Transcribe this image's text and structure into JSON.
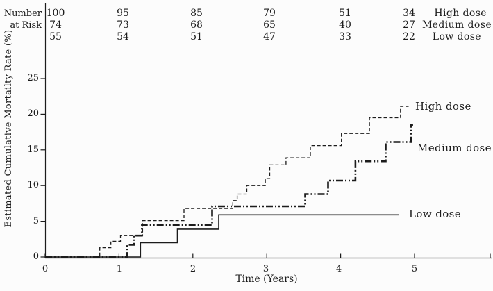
{
  "figure": {
    "ink_color": "#1c1c1c",
    "background_color": "#fcfcfc"
  },
  "risk_table": {
    "header_line1": "Number",
    "header_line2": "at Risk",
    "rows": [
      {
        "series": "High dose",
        "counts": [
          100,
          95,
          85,
          79,
          51,
          34
        ]
      },
      {
        "series": "Medium dose",
        "counts": [
          74,
          73,
          68,
          65,
          40,
          27
        ]
      },
      {
        "series": "Low dose",
        "counts": [
          55,
          54,
          51,
          47,
          33,
          22
        ]
      }
    ]
  },
  "chart_data": {
    "type": "line",
    "subtype": "step-post",
    "title": "",
    "xlabel": "Time (Years)",
    "ylabel": "Estimated Cumulative Mortailty Rate (%)",
    "xlim": [
      0,
      6.05
    ],
    "ylim": [
      0,
      27
    ],
    "x_ticks": [
      0,
      1,
      2,
      3,
      4,
      5
    ],
    "y_ticks": [
      0,
      5,
      10,
      15,
      20,
      25
    ],
    "grid": false,
    "legend_position": "inline-right-of-curves",
    "series": [
      {
        "name": "High dose",
        "style": "dashed",
        "points": [
          [
            0,
            0
          ],
          [
            0.74,
            1.3
          ],
          [
            0.89,
            2.2
          ],
          [
            1.02,
            3.0
          ],
          [
            1.32,
            5.1
          ],
          [
            1.88,
            6.8
          ],
          [
            2.54,
            7.9
          ],
          [
            2.6,
            8.8
          ],
          [
            2.73,
            10.0
          ],
          [
            2.98,
            11.0
          ],
          [
            3.04,
            12.9
          ],
          [
            3.26,
            13.9
          ],
          [
            3.59,
            15.6
          ],
          [
            4.01,
            17.3
          ],
          [
            4.39,
            19.5
          ],
          [
            4.81,
            21.1
          ]
        ],
        "end_t": 4.92
      },
      {
        "name": "Medium dose",
        "style": "dash-dot-dot",
        "points": [
          [
            0,
            0
          ],
          [
            1.11,
            1.7
          ],
          [
            1.2,
            3.0
          ],
          [
            1.31,
            4.5
          ],
          [
            2.26,
            7.1
          ],
          [
            3.52,
            8.8
          ],
          [
            3.83,
            10.7
          ],
          [
            4.2,
            13.4
          ],
          [
            4.61,
            16.1
          ],
          [
            4.95,
            18.5
          ]
        ],
        "end_t": 4.98
      },
      {
        "name": "Low dose",
        "style": "solid",
        "points": [
          [
            0,
            0
          ],
          [
            1.29,
            2.0
          ],
          [
            1.79,
            3.9
          ],
          [
            2.35,
            5.9
          ]
        ],
        "end_t": 4.79
      }
    ]
  }
}
